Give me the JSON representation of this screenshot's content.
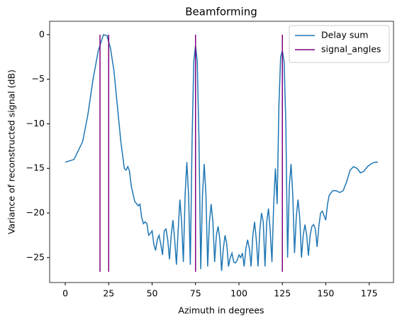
{
  "chart_data": {
    "type": "line",
    "title": "Beamforming",
    "x_label": "Azimuth in degrees",
    "y_label": "Variance of reconstructed signal (dB)",
    "x": [
      0,
      5,
      10,
      13,
      16,
      19,
      22,
      24,
      26,
      28,
      30,
      32,
      34,
      35,
      36,
      37,
      38,
      40,
      42,
      43,
      44,
      45,
      46,
      47,
      48,
      49,
      50,
      51,
      52,
      53,
      54,
      55,
      56,
      57,
      58,
      59,
      60,
      61,
      62,
      63,
      64,
      65,
      66,
      67,
      68,
      69,
      70,
      71,
      72,
      73,
      74,
      75,
      76,
      77,
      78,
      79,
      80,
      81,
      82,
      83,
      84,
      85,
      86,
      87,
      88,
      89,
      90,
      91,
      92,
      93,
      94,
      95,
      96,
      97,
      98,
      99,
      100,
      101,
      102,
      103,
      104,
      105,
      106,
      107,
      108,
      109,
      110,
      111,
      112,
      113,
      114,
      115,
      116,
      117,
      118,
      119,
      120,
      121,
      122,
      123,
      124,
      125,
      126,
      127,
      128,
      129,
      130,
      131,
      132,
      133,
      134,
      135,
      136,
      137,
      138,
      139,
      140,
      141,
      142,
      143,
      144,
      145,
      146,
      147,
      148,
      149,
      150,
      151,
      152,
      154,
      156,
      158,
      160,
      162,
      164,
      166,
      168,
      170,
      172,
      174,
      176,
      178,
      180
    ],
    "series": [
      {
        "name": "Delay sum",
        "color": "#1f77b4",
        "values": [
          -14.3,
          -14.0,
          -12,
          -9,
          -5,
          -1.8,
          0,
          -0.1,
          -1.5,
          -4,
          -8,
          -12,
          -15,
          -15.2,
          -14.8,
          -15.3,
          -17,
          -18.7,
          -19.2,
          -19,
          -20.5,
          -21.2,
          -21,
          -21.2,
          -22.5,
          -22.3,
          -22,
          -23.5,
          -24.2,
          -23,
          -22.5,
          -23.5,
          -24.7,
          -22,
          -21.8,
          -23,
          -25.2,
          -22.5,
          -20.8,
          -23,
          -25.8,
          -22,
          -18.5,
          -21,
          -25.5,
          -18,
          -14.3,
          -18,
          -25.8,
          -12,
          -3,
          -1.2,
          -3,
          -12,
          -26.3,
          -18,
          -14.5,
          -18,
          -26,
          -21,
          -19,
          -21,
          -25.5,
          -22.5,
          -21.5,
          -23,
          -26.5,
          -24,
          -22.5,
          -23.5,
          -26,
          -25,
          -24.5,
          -25.5,
          -25.6,
          -25.3,
          -24.7,
          -25,
          -24.5,
          -26,
          -24,
          -23,
          -24,
          -26,
          -22.5,
          -21,
          -23,
          -26,
          -22,
          -20,
          -21,
          -26,
          -21,
          -19.5,
          -22,
          -25.5,
          -19,
          -15,
          -19,
          -8,
          -2.5,
          -1.8,
          -3,
          -10,
          -25,
          -17,
          -14.5,
          -18,
          -24.5,
          -20.5,
          -18.5,
          -20.5,
          -25,
          -22.5,
          -21.3,
          -22.5,
          -24.8,
          -22.5,
          -21.5,
          -21.3,
          -21.8,
          -23.8,
          -21.5,
          -20,
          -19.8,
          -20.3,
          -20.8,
          -19,
          -18,
          -17.5,
          -17.5,
          -17.7,
          -17.5,
          -16.5,
          -15.2,
          -14.8,
          -15,
          -15.5,
          -15.3,
          -14.8,
          -14.5,
          -14.3,
          -14.3
        ]
      }
    ],
    "vlines": {
      "name": "signal_angles",
      "color": "purple",
      "x": [
        20,
        25,
        75,
        125
      ],
      "ymin": -26.6,
      "ymax": 0
    },
    "xlim": [
      -9,
      189
    ],
    "ylim": [
      -27.8,
      1.5
    ],
    "xticks": [
      0,
      25,
      50,
      75,
      100,
      125,
      150,
      175
    ],
    "yticks": [
      0,
      {
        "value": -5,
        "label": "−5"
      },
      {
        "value": -10,
        "label": "−10"
      },
      {
        "value": -15,
        "label": "−15"
      },
      {
        "value": -20,
        "label": "−20"
      },
      {
        "value": -25,
        "label": "−25"
      }
    ],
    "legend": "upper right"
  }
}
